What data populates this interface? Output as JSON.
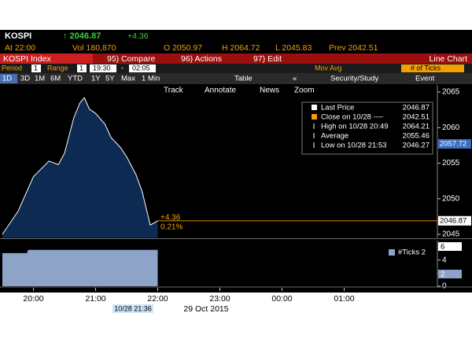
{
  "quote": {
    "ticker": "KOSPI",
    "price": "↑ 2046.87",
    "change": "+4.36",
    "time": "At 22:00",
    "volume": "Vol 180,870",
    "open": "O 2050.97",
    "high": "H 2064.72",
    "low": "L 2045.83",
    "prev": "Prev 2042.51"
  },
  "menu": {
    "security": "KOSPI Index",
    "items": [
      "95) Compare",
      "96) Actions",
      "97) Edit"
    ],
    "view": "Line Chart"
  },
  "settings": {
    "period_label": "Period",
    "period": "1",
    "range_label": "Range",
    "range_n": "1",
    "from": "19:30",
    "dash": "-",
    "to": "02:05",
    "mov_avg": "Mov Avg",
    "ticks": "# of Ticks"
  },
  "periods": [
    "1D",
    "3D",
    "1M",
    "6M",
    "YTD",
    "1Y",
    "5Y",
    "Max",
    "1 Min",
    "Table",
    "«",
    "Security/Study",
    "Event"
  ],
  "tools": [
    "Track",
    "Annotate",
    "News",
    "Zoom"
  ],
  "chart_data": [
    {
      "type": "area",
      "x": [
        19.5,
        19.75,
        20.0,
        20.25,
        20.4,
        20.5,
        20.65,
        20.75,
        20.82,
        20.9,
        21.0,
        21.15,
        21.25,
        21.4,
        21.5,
        21.65,
        21.75,
        21.88,
        22.0
      ],
      "series": [
        {
          "name": "Last Price",
          "color": "#ffffff",
          "fill": "#0d2a52",
          "values": [
            2045.0,
            2048.2,
            2053.1,
            2055.3,
            2054.8,
            2056.4,
            2061.4,
            2063.5,
            2064.2,
            2062.6,
            2062.0,
            2060.5,
            2058.6,
            2057.2,
            2055.9,
            2053.4,
            2051.0,
            2046.3,
            2046.9
          ]
        }
      ],
      "xlim": [
        19.5,
        26.5
      ],
      "ylim": [
        2044.5,
        2066
      ],
      "yticks": [
        2045,
        2050,
        2055,
        2060,
        2065
      ],
      "legend": [
        {
          "label": "Close on 10/28 ----",
          "value": "2042.51"
        },
        {
          "label": "High on 10/28 20:49",
          "value": "2064.21"
        },
        {
          "label": "Average",
          "value": "2055.46"
        },
        {
          "label": "Low on 10/28 21:53",
          "value": "2046.27"
        }
      ],
      "last_value": "2046.87",
      "annotations": [
        "+4.36",
        "0.21%"
      ],
      "axis_boxes": [
        "2057.72",
        "2046.87"
      ]
    },
    {
      "type": "area",
      "x": [
        19.5,
        19.9,
        19.92,
        22.0
      ],
      "series": [
        {
          "name": "#Ticks 2",
          "color": "#8ea3c8",
          "values": [
            5,
            5,
            5.5,
            5.5
          ]
        }
      ],
      "xlim": [
        19.5,
        26.5
      ],
      "ylim": [
        0,
        7
      ],
      "yticks": [
        0,
        2,
        4,
        6
      ],
      "xticks": [
        {
          "value": 20,
          "label": "20:00"
        },
        {
          "value": 21,
          "label": "21:00"
        },
        {
          "value": 22,
          "label": "22:00"
        },
        {
          "value": 23,
          "label": "23:00"
        },
        {
          "value": 24,
          "label": "00:00"
        },
        {
          "value": 25,
          "label": "01:00"
        }
      ],
      "axis_boxes": [
        "6",
        "2"
      ],
      "cursor": "10/28 21:36",
      "date": "29 Oct 2015"
    }
  ]
}
